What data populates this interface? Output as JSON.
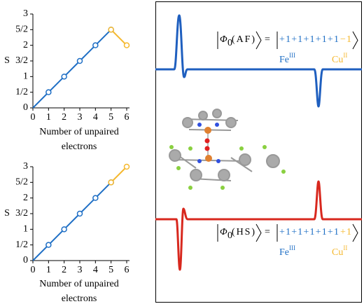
{
  "chart_data": [
    {
      "type": "line",
      "ylabel": "S",
      "xlabel": "Number of unpaired electrons",
      "xlim": [
        0,
        6
      ],
      "ylim": [
        0,
        3
      ],
      "xticks": [
        0,
        1,
        2,
        3,
        4,
        5,
        6
      ],
      "yticks": [
        0,
        {
          "value": 0.5,
          "label": "1/2"
        },
        1,
        {
          "value": 1.5,
          "label": "3/2"
        },
        2,
        {
          "value": 2.5,
          "label": "5/2"
        },
        3
      ],
      "series": [
        {
          "color": "#1f6fc5",
          "x": [
            0,
            1,
            2,
            3,
            4,
            5
          ],
          "values": [
            0,
            0.5,
            1,
            1.5,
            2,
            2.5
          ]
        },
        {
          "color": "#f5b82e",
          "x": [
            5,
            6
          ],
          "values": [
            2.5,
            2
          ]
        }
      ]
    },
    {
      "type": "line",
      "ylabel": "S",
      "xlabel": "Number of unpaired electrons",
      "xlim": [
        0,
        6
      ],
      "ylim": [
        0,
        3
      ],
      "xticks": [
        0,
        1,
        2,
        3,
        4,
        5,
        6
      ],
      "yticks": [
        0,
        {
          "value": 0.5,
          "label": "1/2"
        },
        1,
        {
          "value": 1.5,
          "label": "3/2"
        },
        2,
        {
          "value": 2.5,
          "label": "5/2"
        },
        3
      ],
      "series": [
        {
          "color": "#1f6fc5",
          "x": [
            0,
            1,
            2,
            3,
            4,
            5
          ],
          "values": [
            0,
            0.5,
            1,
            1.5,
            2,
            2.5
          ]
        },
        {
          "color": "#f5b82e",
          "x": [
            5,
            6
          ],
          "values": [
            2.5,
            3
          ]
        }
      ]
    }
  ],
  "panel": {
    "af": {
      "symbol": "Φ",
      "subscript": "0",
      "label": "(AF)",
      "equals": "=",
      "spins": "+1+1+1+1+1",
      "last_spin": "−1"
    },
    "hs": {
      "symbol": "Φ",
      "subscript": "0",
      "label": "(HS)",
      "equals": "=",
      "spins": "+1+1+1+1+1",
      "last_spin": "+1"
    },
    "fe": {
      "element": "Fe",
      "oxidation": "III"
    },
    "cu": {
      "element": "Cu",
      "oxidation": "II"
    }
  }
}
